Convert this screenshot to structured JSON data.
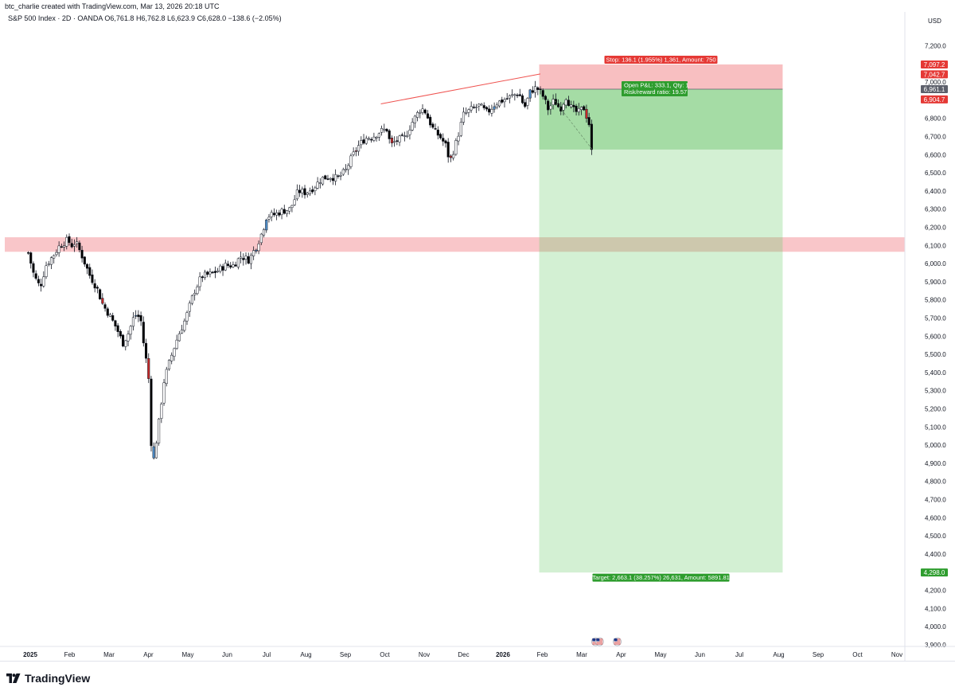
{
  "header": {
    "created_by": "btc_charlie created with TradingView.com, Mar 13, 2026 20:18 UTC",
    "symbol_line": "S&P 500 Index · 2D · OANDA",
    "ohlc": {
      "open": "O6,761.8",
      "high": "H6,762.8",
      "low": "L6,623.9",
      "close": "C6,628.0"
    },
    "change": "−138.6 (−2.05%)"
  },
  "currency": "USD",
  "brand": {
    "name": "TradingView",
    "icon": "tradingview-logo-icon"
  },
  "colors": {
    "up_candle": "#ffffff",
    "down_candle": "#000000",
    "red_candle": "#c62828",
    "blue_candle": "#4e8fcb",
    "stop_zone": "#f8bfc1",
    "target_zone_dark": "#a5dca5",
    "target_zone_light": "#d1efd1",
    "resistance_zone": "#f9c6c9",
    "stop_label_bg": "#e53935",
    "target_label_bg": "#2e9d2e"
  },
  "chart_data": {
    "type": "candlestick",
    "timeframe": "2D",
    "x_ticks": [
      {
        "label": "2025",
        "bold": true,
        "t": 0
      },
      {
        "label": "Feb",
        "t": 1
      },
      {
        "label": "Mar",
        "t": 2
      },
      {
        "label": "Apr",
        "t": 3
      },
      {
        "label": "May",
        "t": 4
      },
      {
        "label": "Jun",
        "t": 5
      },
      {
        "label": "Jul",
        "t": 6
      },
      {
        "label": "Aug",
        "t": 7
      },
      {
        "label": "Sep",
        "t": 8
      },
      {
        "label": "Oct",
        "t": 9
      },
      {
        "label": "Nov",
        "t": 10
      },
      {
        "label": "Dec",
        "t": 11
      },
      {
        "label": "2026",
        "bold": true,
        "t": 12
      },
      {
        "label": "Feb",
        "t": 13
      },
      {
        "label": "Mar",
        "t": 14
      },
      {
        "label": "Apr",
        "t": 15
      },
      {
        "label": "May",
        "t": 16
      },
      {
        "label": "Jun",
        "t": 17
      },
      {
        "label": "Jul",
        "t": 18
      },
      {
        "label": "Aug",
        "t": 19
      },
      {
        "label": "Sep",
        "t": 20
      },
      {
        "label": "Oct",
        "t": 21
      },
      {
        "label": "Nov",
        "t": 22
      }
    ],
    "y_ticks": [
      "7,200.0",
      "7,100.0",
      "7,000.0",
      "6,900.0",
      "6,800.0",
      "6,700.0",
      "6,600.0",
      "6,500.0",
      "6,400.0",
      "6,300.0",
      "6,200.0",
      "6,100.0",
      "6,000.0",
      "5,900.0",
      "5,800.0",
      "5,700.0",
      "5,600.0",
      "5,500.0",
      "5,400.0",
      "5,300.0",
      "5,200.0",
      "5,100.0",
      "5,000.0",
      "4,900.0",
      "4,800.0",
      "4,700.0",
      "4,600.0",
      "4,500.0",
      "4,400.0",
      "4,300.0",
      "4,200.0",
      "4,100.0",
      "4,000.0",
      "3,900.0"
    ],
    "y_tick_values": [
      7200,
      7100,
      7000,
      6900,
      6800,
      6700,
      6600,
      6500,
      6400,
      6300,
      6200,
      6100,
      6000,
      5900,
      5800,
      5700,
      5600,
      5500,
      5400,
      5300,
      5200,
      5100,
      5000,
      4900,
      4800,
      4700,
      4600,
      4500,
      4400,
      4300,
      4200,
      4100,
      4000,
      3900
    ],
    "ylim": [
      3880,
      7320
    ],
    "anchors_t_close": [
      [
        -0.05,
        6060
      ],
      [
        0.1,
        5930
      ],
      [
        0.25,
        5870
      ],
      [
        0.4,
        5990
      ],
      [
        0.6,
        6050
      ],
      [
        0.75,
        6100
      ],
      [
        0.95,
        6130
      ],
      [
        1.05,
        6100
      ],
      [
        1.15,
        6120
      ],
      [
        1.3,
        6050
      ],
      [
        1.5,
        5940
      ],
      [
        1.7,
        5860
      ],
      [
        1.85,
        5770
      ],
      [
        2.0,
        5720
      ],
      [
        2.2,
        5640
      ],
      [
        2.35,
        5560
      ],
      [
        2.5,
        5620
      ],
      [
        2.65,
        5720
      ],
      [
        2.8,
        5700
      ],
      [
        2.9,
        5520
      ],
      [
        3.0,
        5400
      ],
      [
        3.05,
        5060
      ],
      [
        3.12,
        4900
      ],
      [
        3.25,
        5100
      ],
      [
        3.4,
        5360
      ],
      [
        3.55,
        5470
      ],
      [
        3.75,
        5600
      ],
      [
        3.95,
        5700
      ],
      [
        4.15,
        5840
      ],
      [
        4.35,
        5930
      ],
      [
        4.55,
        5940
      ],
      [
        4.75,
        5960
      ],
      [
        4.95,
        5990
      ],
      [
        5.15,
        5990
      ],
      [
        5.35,
        6040
      ],
      [
        5.55,
        6020
      ],
      [
        5.75,
        6100
      ],
      [
        5.9,
        6180
      ],
      [
        6.0,
        6260
      ],
      [
        6.2,
        6270
      ],
      [
        6.4,
        6290
      ],
      [
        6.6,
        6300
      ],
      [
        6.8,
        6400
      ],
      [
        7.0,
        6390
      ],
      [
        7.2,
        6420
      ],
      [
        7.4,
        6470
      ],
      [
        7.6,
        6480
      ],
      [
        7.8,
        6470
      ],
      [
        8.0,
        6510
      ],
      [
        8.15,
        6580
      ],
      [
        8.3,
        6640
      ],
      [
        8.5,
        6690
      ],
      [
        8.7,
        6700
      ],
      [
        8.9,
        6730
      ],
      [
        9.05,
        6740
      ],
      [
        9.15,
        6650
      ],
      [
        9.3,
        6680
      ],
      [
        9.5,
        6690
      ],
      [
        9.7,
        6780
      ],
      [
        9.9,
        6850
      ],
      [
        10.0,
        6850
      ],
      [
        10.1,
        6800
      ],
      [
        10.25,
        6730
      ],
      [
        10.4,
        6700
      ],
      [
        10.55,
        6650
      ],
      [
        10.65,
        6560
      ],
      [
        10.8,
        6660
      ],
      [
        11.0,
        6820
      ],
      [
        11.2,
        6850
      ],
      [
        11.4,
        6870
      ],
      [
        11.6,
        6830
      ],
      [
        11.8,
        6880
      ],
      [
        12.0,
        6900
      ],
      [
        12.2,
        6920
      ],
      [
        12.4,
        6940
      ],
      [
        12.55,
        6860
      ],
      [
        12.7,
        6950
      ],
      [
        12.85,
        6970
      ],
      [
        13.0,
        6930
      ],
      [
        13.15,
        6850
      ],
      [
        13.3,
        6900
      ],
      [
        13.45,
        6850
      ],
      [
        13.6,
        6920
      ],
      [
        13.75,
        6850
      ],
      [
        13.9,
        6830
      ],
      [
        14.05,
        6860
      ],
      [
        14.2,
        6760
      ],
      [
        14.27,
        6628
      ]
    ],
    "highlight_candles": [
      {
        "t": 3.0,
        "color": "red"
      },
      {
        "t": 1.85,
        "color": "red"
      },
      {
        "t": 8.25,
        "color": "red"
      },
      {
        "t": 9.15,
        "color": "red"
      },
      {
        "t": 10.65,
        "color": "red"
      },
      {
        "t": 14.1,
        "color": "red"
      },
      {
        "t": 2.65,
        "color": "blue"
      },
      {
        "t": 3.12,
        "color": "blue"
      },
      {
        "t": 5.75,
        "color": "blue"
      },
      {
        "t": 6.0,
        "color": "blue"
      },
      {
        "t": 11.8,
        "color": "blue"
      },
      {
        "t": 12.7,
        "color": "blue"
      }
    ],
    "resistance_zone": {
      "low": 6065,
      "high": 6145
    },
    "trendline": {
      "t1": 8.9,
      "p1": 6880,
      "t2": 12.95,
      "p2": 7045
    },
    "position": {
      "t_start": 12.92,
      "t_end": 19.1,
      "entry": 6961.1,
      "stop": 7097.2,
      "target": 4298.0,
      "current": 6628.0,
      "stop_label": "Stop: 136.1 (1.955%) 1,361, Amount: 750",
      "pnl_label": "Open P&L: 333.1, Qty: 1",
      "rr_label": "Risk/reward ratio: 19.57",
      "target_label": "Target: 2,663.1 (38.257%) 26,631, Amount: 5891.81"
    },
    "price_labels": [
      {
        "text": "7,097.2",
        "value": 7097.2,
        "bg": "#e53935",
        "fg": "#ffffff"
      },
      {
        "text": "7,042.7",
        "value": 7042.7,
        "bg": "#e53935",
        "fg": "#ffffff"
      },
      {
        "text": "6,961.1",
        "value": 6961.1,
        "bg": "#5d606b",
        "fg": "#ffffff"
      },
      {
        "text": "6,904.7",
        "value": 6904.7,
        "bg": "#e53935",
        "fg": "#ffffff"
      },
      {
        "text": "4,298.0",
        "value": 4298.0,
        "bg": "#2e9d2e",
        "fg": "#ffffff"
      }
    ],
    "event_flags": [
      {
        "t": 14.35,
        "icon": "us-flag-icon"
      },
      {
        "t": 14.45,
        "icon": "us-flag-icon"
      },
      {
        "t": 14.9,
        "icon": "us-flag-icon"
      }
    ]
  }
}
